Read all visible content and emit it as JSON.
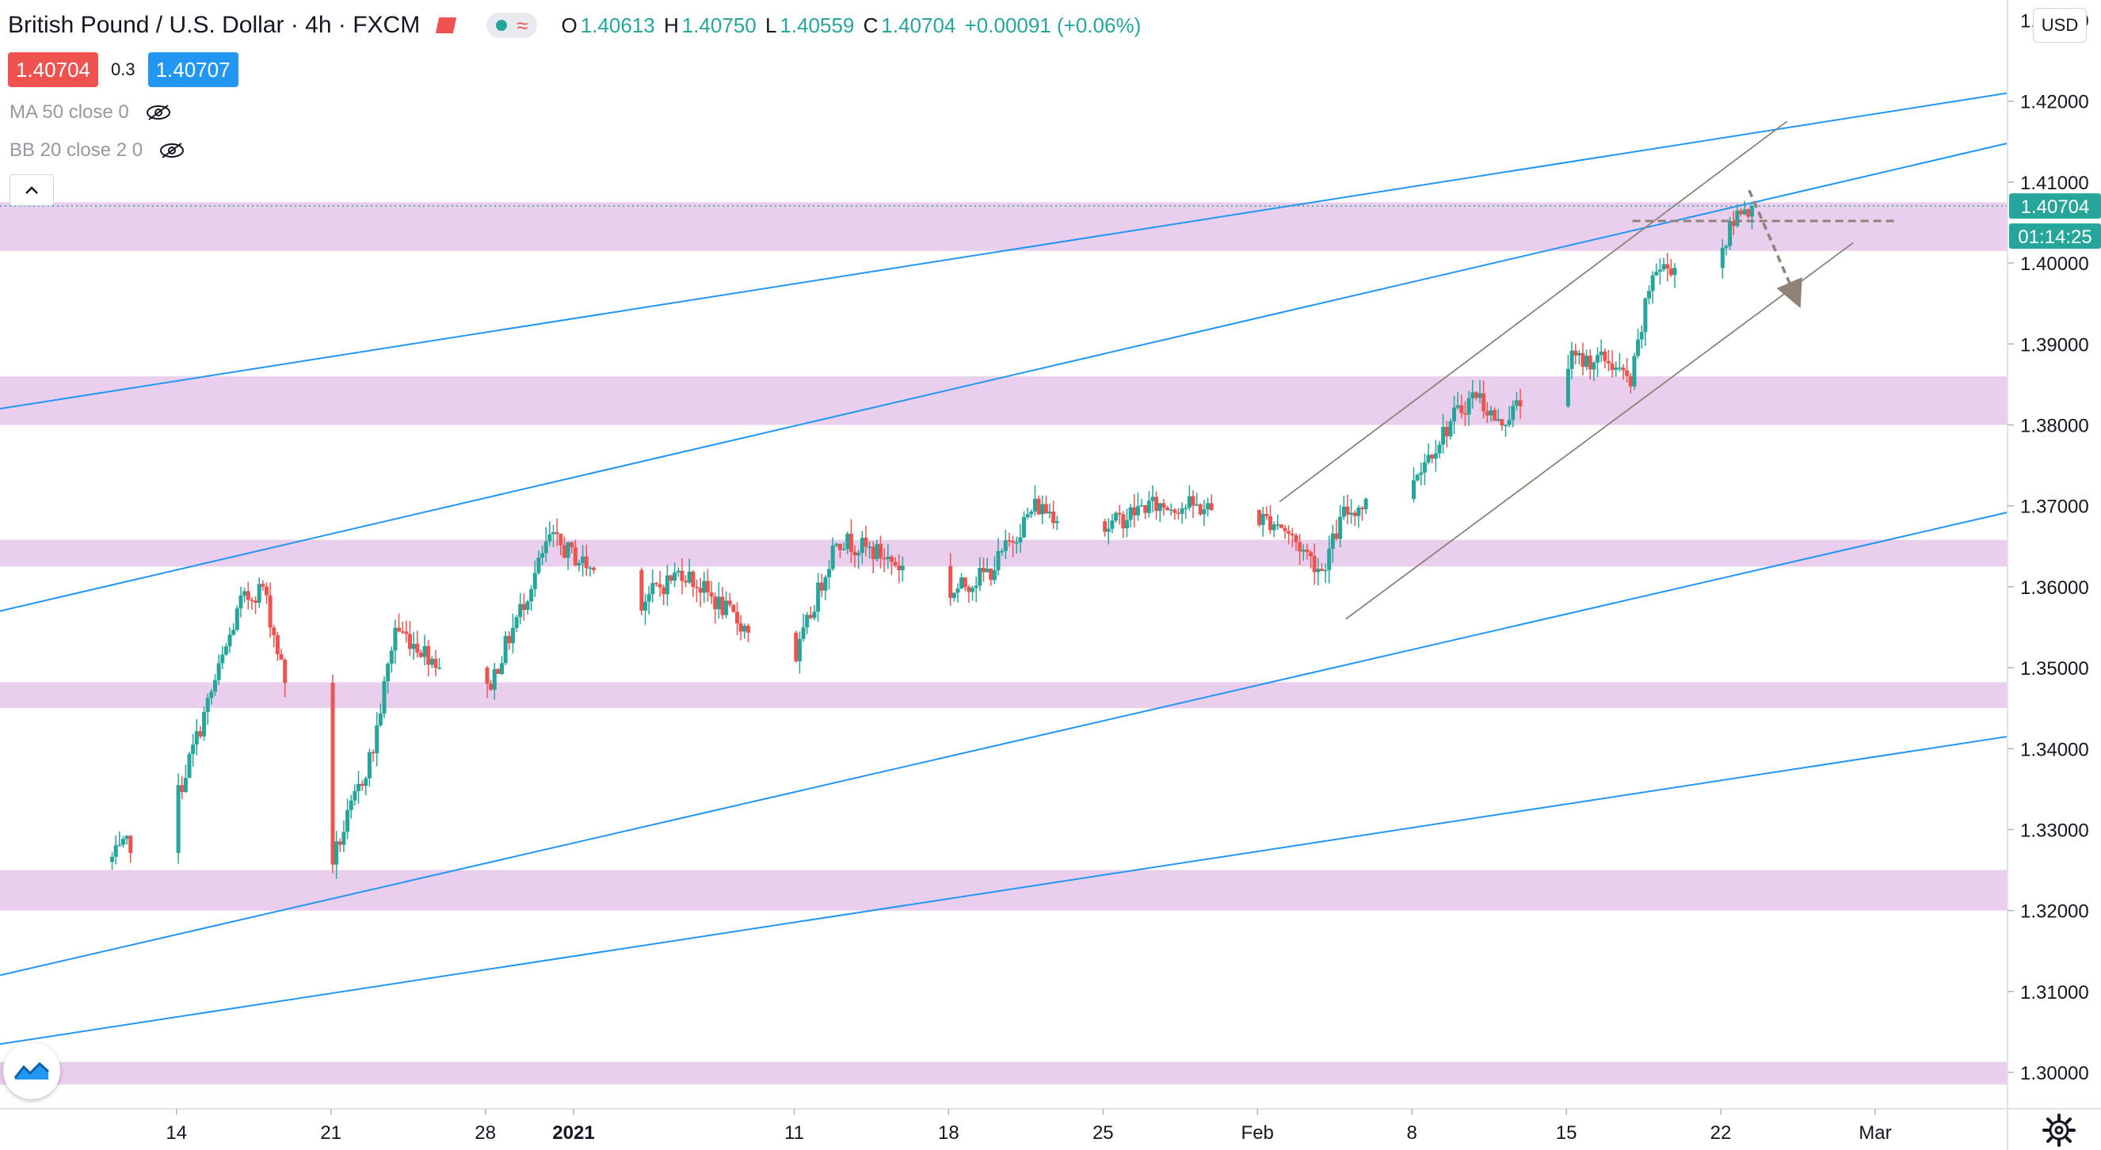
{
  "header": {
    "symbol": "British Pound / U.S. Dollar",
    "interval": "4h",
    "exchange": "FXCM",
    "ohlc": {
      "o_label": "O",
      "o": "1.40613",
      "h_label": "H",
      "h": "1.40750",
      "l_label": "L",
      "l": "1.40559",
      "c_label": "C",
      "c": "1.40704",
      "change": "+0.00091 (+0.06%)"
    }
  },
  "quote": {
    "bid": "1.40704",
    "spread": "0.3",
    "ask": "1.40707"
  },
  "indicators": [
    {
      "label": "MA 50 close 0"
    },
    {
      "label": "BB 20 close 2 0"
    }
  ],
  "currency": "USD",
  "price_axis": {
    "labels": [
      "1.42000",
      "1.41000",
      "1.40000",
      "1.39000",
      "1.38000",
      "1.37000",
      "1.36000",
      "1.35000",
      "1.34000",
      "1.33000",
      "1.32000",
      "1.31000",
      "1.30000"
    ],
    "top_partial": "1.43000",
    "current_price": "1.40704",
    "countdown": "01:14:25"
  },
  "colors": {
    "up": "#26a69a",
    "down": "#ef5350",
    "trend": "#2196f3",
    "zone": "#e1bee7",
    "channel": "#8d8178"
  },
  "chart_data": {
    "type": "candlestick",
    "symbol": "GBPUSD",
    "timeframe": "4h",
    "x_ticks": [
      "14",
      "21",
      "28",
      "2021",
      "11",
      "18",
      "25",
      "Feb",
      "8",
      "15",
      "22",
      "Mar"
    ],
    "ylim": [
      1.2955,
      1.4325
    ],
    "current_price": 1.40704,
    "ohlc_anchor": [
      {
        "date": "2020-12-11",
        "close": 1.326
      },
      {
        "date": "2020-12-14",
        "close": 1.333
      },
      {
        "date": "2020-12-17",
        "close": 1.358
      },
      {
        "date": "2020-12-18",
        "close": 1.36
      },
      {
        "date": "2020-12-21",
        "close": 1.325
      },
      {
        "date": "2020-12-23",
        "close": 1.34
      },
      {
        "date": "2020-12-24",
        "close": 1.355
      },
      {
        "date": "2020-12-28",
        "close": 1.346
      },
      {
        "date": "2020-12-31",
        "close": 1.366
      },
      {
        "date": "2021-01-04",
        "close": 1.358
      },
      {
        "date": "2021-01-06",
        "close": 1.362
      },
      {
        "date": "2021-01-08",
        "close": 1.357
      },
      {
        "date": "2021-01-11",
        "close": 1.35
      },
      {
        "date": "2021-01-13",
        "close": 1.366
      },
      {
        "date": "2021-01-15",
        "close": 1.364
      },
      {
        "date": "2021-01-18",
        "close": 1.359
      },
      {
        "date": "2021-01-20",
        "close": 1.362
      },
      {
        "date": "2021-01-22",
        "close": 1.37
      },
      {
        "date": "2021-01-25",
        "close": 1.367
      },
      {
        "date": "2021-01-27",
        "close": 1.37
      },
      {
        "date": "2021-01-29",
        "close": 1.37
      },
      {
        "date": "2021-02-02",
        "close": 1.368
      },
      {
        "date": "2021-02-04",
        "close": 1.362
      },
      {
        "date": "2021-02-05",
        "close": 1.369
      },
      {
        "date": "2021-02-08",
        "close": 1.373
      },
      {
        "date": "2021-02-10",
        "close": 1.381
      },
      {
        "date": "2021-02-11",
        "close": 1.384
      },
      {
        "date": "2021-02-12",
        "close": 1.38
      },
      {
        "date": "2021-02-15",
        "close": 1.388
      },
      {
        "date": "2021-02-17",
        "close": 1.388
      },
      {
        "date": "2021-02-18",
        "close": 1.385
      },
      {
        "date": "2021-02-19",
        "close": 1.399
      },
      {
        "date": "2021-02-22",
        "close": 1.401
      },
      {
        "date": "2021-02-23",
        "close": 1.407
      }
    ],
    "zones": [
      [
        1.4015,
        1.4075
      ],
      [
        1.38,
        1.386
      ],
      [
        1.3625,
        1.3658
      ],
      [
        1.345,
        1.3482
      ],
      [
        1.32,
        1.325
      ],
      [
        1.2985,
        1.3013
      ]
    ],
    "trendlines": [
      {
        "from": [
          "2020-12-06",
          1.382
        ],
        "to": [
          "2021-03-07",
          1.421
        ]
      },
      {
        "from": [
          "2020-12-06",
          1.357
        ],
        "to": [
          "2021-03-07",
          1.4148
        ]
      },
      {
        "from": [
          "2020-12-06",
          1.312
        ],
        "to": [
          "2021-03-07",
          1.3692
        ]
      },
      {
        "from": [
          "2020-12-06",
          1.3035
        ],
        "to": [
          "2021-03-07",
          1.3415
        ]
      }
    ],
    "channel": [
      {
        "from": [
          "2021-02-02",
          1.3705
        ],
        "to": [
          "2021-02-25",
          1.4175
        ]
      },
      {
        "from": [
          "2021-02-05",
          1.356
        ],
        "to": [
          "2021-02-28",
          1.4025
        ]
      }
    ],
    "support_level": 1.4052,
    "projection": {
      "from": [
        "2021-02-23",
        1.409
      ],
      "to": [
        "2021-02-24",
        1.396
      ]
    }
  }
}
